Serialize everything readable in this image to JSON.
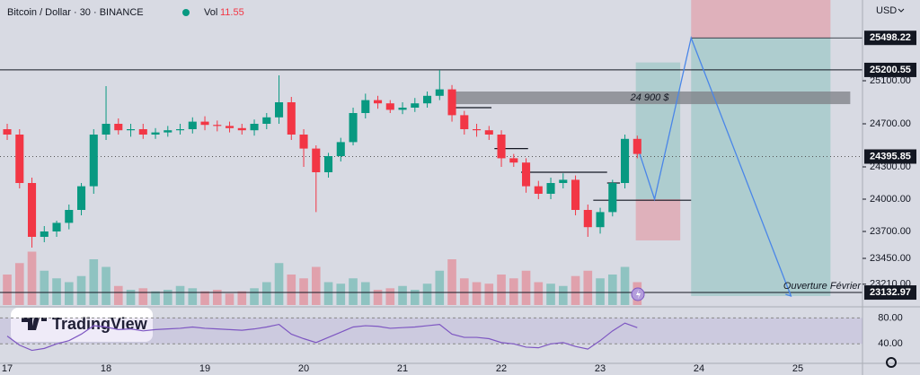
{
  "chart_data": {
    "type": "candlestick",
    "title": "Bitcoin / Dollar · 30 · BINANCE",
    "volume_label": "Vol",
    "volume_value": 11.55,
    "currency": "USD",
    "brand": "TradingView",
    "x": [
      17,
      17.125,
      17.25,
      17.375,
      17.5,
      17.625,
      17.75,
      17.875,
      18,
      18.125,
      18.25,
      18.375,
      18.5,
      18.625,
      18.75,
      18.875,
      19,
      19.125,
      19.25,
      19.375,
      19.5,
      19.625,
      19.75,
      19.875,
      20,
      20.125,
      20.25,
      20.375,
      20.5,
      20.625,
      20.75,
      20.875,
      21,
      21.125,
      21.25,
      21.375,
      21.5,
      21.625,
      21.75,
      21.875,
      22,
      22.125,
      22.25,
      22.375,
      22.5,
      22.625,
      22.75,
      22.875,
      23,
      23.125,
      23.25,
      23.375
    ],
    "open": [
      24650,
      24600,
      24150,
      23650,
      23700,
      23780,
      23900,
      24120,
      24600,
      24700,
      24640,
      24650,
      24600,
      24620,
      24640,
      24650,
      24720,
      24690,
      24680,
      24660,
      24640,
      24700,
      24760,
      24900,
      24600,
      24470,
      24250,
      24400,
      24530,
      24800,
      24920,
      24890,
      24830,
      24850,
      24890,
      24960,
      25020,
      24780,
      24650,
      24640,
      24600,
      24380,
      24340,
      24120,
      24050,
      24150,
      24180,
      23900,
      23740,
      23880,
      24150,
      24560
    ],
    "high": [
      24700,
      24650,
      24200,
      23750,
      23800,
      23950,
      24150,
      24650,
      25050,
      24750,
      24700,
      24700,
      24660,
      24680,
      24700,
      24760,
      24770,
      24730,
      24720,
      24700,
      24740,
      24800,
      25150,
      24950,
      24650,
      24500,
      24430,
      24570,
      24850,
      24980,
      24960,
      24920,
      24900,
      24940,
      25000,
      25200,
      25060,
      24820,
      24700,
      24680,
      24640,
      24420,
      24380,
      24170,
      24200,
      24240,
      24220,
      23950,
      23920,
      24180,
      24600,
      24590
    ],
    "low": [
      24550,
      24100,
      23550,
      23600,
      23650,
      23720,
      23850,
      24050,
      24550,
      24600,
      24580,
      24560,
      24560,
      24580,
      24600,
      24610,
      24640,
      24630,
      24620,
      24600,
      24590,
      24650,
      24700,
      24550,
      24300,
      23880,
      24200,
      24350,
      24500,
      24750,
      24840,
      24800,
      24790,
      24810,
      24850,
      24920,
      24720,
      24600,
      24580,
      24550,
      24300,
      24300,
      24060,
      24000,
      24000,
      24100,
      23850,
      23650,
      23680,
      23840,
      24100,
      24380
    ],
    "close": [
      24600,
      24150,
      23650,
      23700,
      23780,
      23900,
      24120,
      24600,
      24700,
      24640,
      24650,
      24600,
      24620,
      24640,
      24650,
      24720,
      24690,
      24680,
      24660,
      24640,
      24700,
      24760,
      24900,
      24600,
      24470,
      24250,
      24400,
      24530,
      24800,
      24920,
      24890,
      24830,
      24850,
      24890,
      24960,
      25020,
      24780,
      24650,
      24640,
      24600,
      24380,
      24340,
      24120,
      24050,
      24150,
      24180,
      23900,
      23740,
      23880,
      24150,
      24560,
      24420
    ],
    "volume": [
      40,
      55,
      70,
      45,
      35,
      30,
      38,
      60,
      50,
      25,
      20,
      22,
      18,
      20,
      25,
      22,
      18,
      20,
      15,
      18,
      22,
      30,
      55,
      40,
      35,
      50,
      30,
      28,
      35,
      30,
      20,
      22,
      25,
      20,
      28,
      45,
      60,
      35,
      30,
      28,
      40,
      35,
      45,
      30,
      28,
      25,
      38,
      45,
      35,
      40,
      50,
      30
    ],
    "vlim": [
      0,
      100
    ],
    "colors": {
      "up": "#089981",
      "down": "#f23645"
    },
    "xlim": [
      16.927,
      25.654
    ],
    "xticks": [
      17,
      18,
      19,
      20,
      21,
      22,
      23,
      24,
      25
    ],
    "ylim": [
      23016.7,
      25850
    ],
    "yticks": [
      {
        "value": 25100,
        "label": "25100.00"
      },
      {
        "value": 24700,
        "label": "24700.00"
      },
      {
        "value": 24300,
        "label": "24300.00"
      },
      {
        "value": 24000,
        "label": "24000.00"
      },
      {
        "value": 23700,
        "label": "23700.00"
      },
      {
        "value": 23450,
        "label": "23450.00"
      },
      {
        "value": 23210,
        "label": "23210.00"
      }
    ],
    "levels": [
      {
        "value": 25200.55,
        "label": "25200.55"
      },
      {
        "value": 23132.97,
        "label": "23132.97"
      }
    ],
    "last_price": {
      "value": 24395.85,
      "label": "24395.85"
    },
    "zones": [
      {
        "x": [
          21.47,
          25.53
        ],
        "y": [
          24883,
          25000
        ],
        "color": "#7d7f86",
        "text": "24 900 $"
      }
    ],
    "positions": [
      {
        "x": [
          23.92,
          25.33
        ],
        "top": 25850,
        "entry": {
          "value": 25498.22,
          "label": "25498.22"
        },
        "bottom": 23100,
        "side": "short"
      },
      {
        "x": [
          23.36,
          23.81
        ],
        "top": 25270,
        "entry": 24000,
        "bottom": 23617,
        "side": "long"
      }
    ],
    "segments": [
      {
        "x": [
          21.47,
          21.9
        ],
        "y": 24850
      },
      {
        "x": [
          21.93,
          22.27
        ],
        "y": 24470
      },
      {
        "x": [
          22.2,
          23.07
        ],
        "y": 24250
      },
      {
        "x": [
          23.07,
          23.2
        ],
        "y": 24150
      },
      {
        "x": [
          22.93,
          23.92
        ],
        "y": 23990
      }
    ],
    "projection": {
      "x": [
        23.4,
        23.55,
        23.92,
        24.93
      ],
      "y": [
        24420,
        24000,
        25498.22,
        23100
      ],
      "color": "#4a86e8"
    },
    "note": "Ouverture Février",
    "rsi": {
      "values": [
        52,
        38,
        30,
        33,
        40,
        45,
        55,
        68,
        66,
        62,
        63,
        60,
        62,
        63,
        64,
        66,
        64,
        63,
        62,
        61,
        63,
        66,
        70,
        55,
        48,
        42,
        50,
        58,
        66,
        68,
        67,
        64,
        65,
        66,
        68,
        70,
        55,
        50,
        50,
        48,
        42,
        40,
        35,
        34,
        40,
        42,
        36,
        32,
        45,
        60,
        72,
        65
      ],
      "color": "#7e57c2",
      "ylim": [
        10,
        95.7
      ],
      "yticks": [
        {
          "value": 80,
          "label": "80.00"
        },
        {
          "value": 40,
          "label": "40.00"
        }
      ]
    }
  }
}
